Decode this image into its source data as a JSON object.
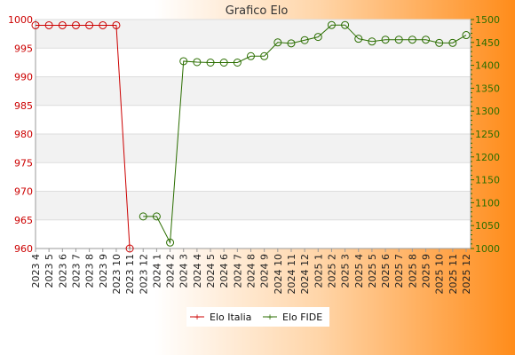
{
  "chart_data": {
    "type": "line",
    "title": "Grafico Elo",
    "categories": [
      "2023 4",
      "2023 5",
      "2023 6",
      "2023 7",
      "2023 8",
      "2023 9",
      "2023 10",
      "2023 11",
      "2023 12",
      "2024 1",
      "2024 2",
      "2024 3",
      "2024 4",
      "2024 5",
      "2024 6",
      "2024 7",
      "2024 8",
      "2024 9",
      "2024 10",
      "2024 11",
      "2024 12",
      "2025 1",
      "2025 2",
      "2025 3",
      "2025 4",
      "2025 5",
      "2025 6",
      "2025 7",
      "2025 8",
      "2025 9",
      "2025 10",
      "2025 11",
      "2025 12"
    ],
    "y_left": {
      "min": 960,
      "max": 1000,
      "ticks": [
        "960",
        "965",
        "970",
        "975",
        "980",
        "985",
        "990",
        "995",
        "1000"
      ]
    },
    "y_right": {
      "min": 1000,
      "max": 1500,
      "ticks": [
        "1000",
        "1050",
        "1100",
        "1150",
        "1200",
        "1250",
        "1300",
        "1350",
        "1400",
        "1450",
        "1500"
      ]
    },
    "series": [
      {
        "name": "Elo Italia",
        "axis": "left",
        "color": "#cc0000",
        "values": [
          999,
          999,
          999,
          999,
          999,
          999,
          999,
          960,
          null,
          null,
          null,
          null,
          null,
          null,
          null,
          null,
          null,
          null,
          null,
          null,
          null,
          null,
          null,
          null,
          null,
          null,
          null,
          null,
          null,
          null,
          null,
          null,
          null
        ]
      },
      {
        "name": "Elo FIDE",
        "axis": "right",
        "color": "#2b6e00",
        "values": [
          null,
          null,
          null,
          null,
          null,
          null,
          null,
          null,
          1070,
          1070,
          1013,
          1409,
          1407,
          1406,
          1406,
          1406,
          1420,
          1420,
          1450,
          1448,
          1455,
          1462,
          1488,
          1488,
          1458,
          1452,
          1456,
          1456,
          1456,
          1456,
          1449,
          1449,
          1466
        ]
      }
    ],
    "grid": true,
    "legend": "bottom-center"
  }
}
